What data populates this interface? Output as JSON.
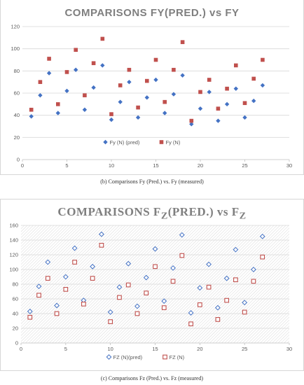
{
  "chart_data": [
    {
      "type": "scatter",
      "title": "COMPARISONS FY(PRED.)  vs FY",
      "caption": "(b) Comparisons Fy (Pred.) vs. Fy (measured)",
      "xlim": [
        0,
        30
      ],
      "ylim": [
        0,
        120
      ],
      "xticks": [
        "0",
        "5",
        "10",
        "15",
        "20",
        "25",
        "30"
      ],
      "yticks": [
        "0",
        "20",
        "40",
        "60",
        "80",
        "100",
        "120"
      ],
      "grid": "horizontal",
      "legend_position": "bottom-center",
      "series": [
        {
          "name": "Fy (N) (pred)",
          "marker": "diamond-filled",
          "color": "#4472c4",
          "x": [
            1,
            2,
            3,
            4,
            5,
            6,
            7,
            8,
            9,
            10,
            11,
            12,
            13,
            14,
            15,
            16,
            17,
            18,
            19,
            20,
            21,
            22,
            23,
            24,
            25,
            26,
            27
          ],
          "y": [
            39,
            58,
            78,
            42,
            62,
            81,
            45,
            65,
            85,
            36,
            52,
            70,
            38,
            56,
            72,
            42,
            59,
            76,
            32,
            46,
            61,
            35,
            50,
            64,
            38,
            53,
            67
          ]
        },
        {
          "name": "Fy (N)",
          "marker": "square-filled",
          "color": "#c0504d",
          "x": [
            1,
            2,
            3,
            4,
            5,
            6,
            7,
            8,
            9,
            10,
            11,
            12,
            13,
            14,
            15,
            16,
            17,
            18,
            19,
            20,
            21,
            22,
            23,
            24,
            25,
            26,
            27
          ],
          "y": [
            45,
            70,
            91,
            50,
            79,
            99,
            58,
            87,
            109,
            41,
            67,
            81,
            47,
            71,
            90,
            52,
            81,
            106,
            35,
            61,
            72,
            46,
            64,
            85,
            51,
            73,
            90
          ]
        }
      ]
    },
    {
      "type": "scatter",
      "title_main": "COMPARISONS F",
      "title_sub1": "Z",
      "title_mid": "(PRED.) vs  F",
      "title_sub2": "Z",
      "caption": "(c) Comparisons Fz (Pred.) vs. Fz (measured)",
      "xlim": [
        0,
        30
      ],
      "ylim": [
        0,
        160
      ],
      "xticks": [
        "0",
        "5",
        "10",
        "15",
        "20",
        "25",
        "30"
      ],
      "yticks": [
        "0",
        "20",
        "40",
        "60",
        "80",
        "100",
        "120",
        "140",
        "160"
      ],
      "grid": "hatched",
      "legend_position": "bottom-center",
      "series": [
        {
          "name": "FZ (N)(pred)",
          "marker": "diamond-open",
          "color": "#4472c4",
          "x": [
            1,
            2,
            3,
            4,
            5,
            6,
            7,
            8,
            9,
            10,
            11,
            12,
            13,
            14,
            15,
            16,
            17,
            18,
            19,
            20,
            21,
            22,
            23,
            24,
            25,
            26,
            27
          ],
          "y": [
            43,
            77,
            110,
            51,
            90,
            129,
            58,
            104,
            148,
            42,
            76,
            108,
            50,
            89,
            128,
            57,
            102,
            147,
            41,
            75,
            107,
            48,
            88,
            127,
            55,
            100,
            145
          ]
        },
        {
          "name": "FZ  (N)",
          "marker": "square-open",
          "color": "#c0504d",
          "x": [
            1,
            2,
            3,
            4,
            5,
            6,
            7,
            8,
            9,
            10,
            11,
            12,
            13,
            14,
            15,
            16,
            17,
            18,
            19,
            20,
            21,
            22,
            23,
            24,
            25,
            26,
            27
          ],
          "y": [
            35,
            65,
            88,
            40,
            73,
            110,
            53,
            88,
            133,
            29,
            62,
            79,
            40,
            68,
            104,
            48,
            84,
            119,
            26,
            52,
            76,
            32,
            58,
            86,
            42,
            84,
            117
          ]
        }
      ]
    }
  ]
}
